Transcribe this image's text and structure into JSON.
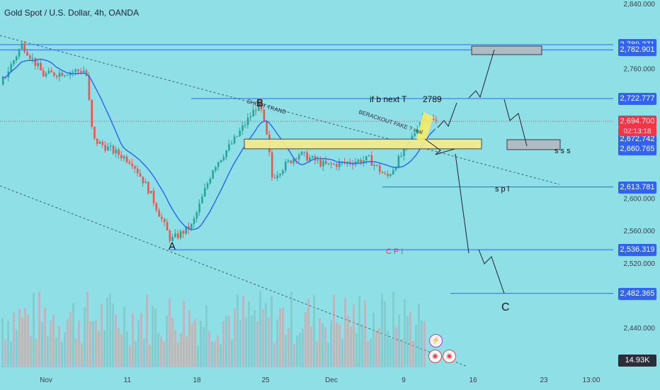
{
  "header": {
    "title": "Gold Spot / U.S. Dollar, 4h, OANDA"
  },
  "chart_data": {
    "type": "candlestick",
    "title": "Gold Spot / U.S. Dollar, 4h, OANDA",
    "ylim": [
      2420,
      2840
    ],
    "x_ticks": [
      "Nov",
      "11",
      "18",
      "25",
      "Dec",
      "9",
      "16",
      "23",
      "13:00"
    ],
    "y_ticks": [
      "2,840.000",
      "2,760.000",
      "2,600.000",
      "2,560.000",
      "2,520.000",
      "2,440.000"
    ],
    "price_levels": [
      {
        "label": "2,789.271",
        "value": 2789.271,
        "color": "#2f62ff"
      },
      {
        "label": "2,782.901",
        "value": 2782.901,
        "color": "#2f62ff"
      },
      {
        "label": "2,722.777",
        "value": 2722.777,
        "color": "#2f62ff"
      },
      {
        "label": "2,694.700",
        "value": 2694.7,
        "color": "#f23645"
      },
      {
        "label": "2,672.742",
        "value": 2672.742,
        "color": "#2f62ff"
      },
      {
        "label": "2,660.765",
        "value": 2660.765,
        "color": "#2f62ff"
      },
      {
        "label": "2,613.781",
        "value": 2613.781,
        "color": "#2f62ff"
      },
      {
        "label": "2,536.319",
        "value": 2536.319,
        "color": "#2f62ff"
      },
      {
        "label": "2,482.365",
        "value": 2482.365,
        "color": "#2f62ff"
      }
    ],
    "countdown": "02:13:18",
    "volume_label": "14.93K",
    "annotations": [
      "A",
      "B",
      "C",
      "SHORT TRAND",
      "BERACKOUT FAKE ? real",
      "if b  next T",
      "2789",
      "s p l",
      "C P I",
      "s s s"
    ],
    "colors": {
      "up": "#26a69a",
      "down": "#ef5350",
      "ma": "#2962ff",
      "background": "#8fe0e6"
    }
  }
}
